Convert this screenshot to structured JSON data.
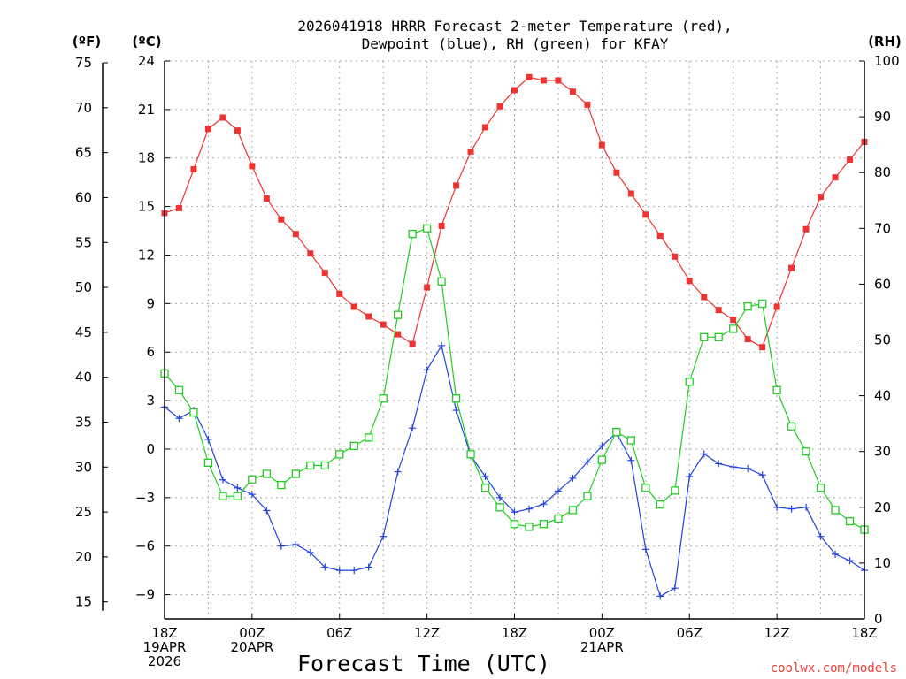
{
  "chart_data": {
    "type": "line",
    "title_line1": "2026041918 HRRR Forecast 2-meter Temperature (red),",
    "title_line2": "Dewpoint (blue), RH (green) for KFAY",
    "xlabel": "Forecast Time (UTC)",
    "credit": "coolwx.com/models",
    "units": {
      "fahrenheit": "(ºF)",
      "celsius": "(ºC)",
      "rh": "(RH)"
    },
    "xlim": [
      0,
      48
    ],
    "ylim_celsius": [
      -10.5,
      24
    ],
    "ylim_rh": [
      0,
      100
    ],
    "fahrenheit_ticks": [
      15,
      20,
      25,
      30,
      35,
      40,
      45,
      50,
      55,
      60,
      65,
      70,
      75
    ],
    "celsius_ticks": [
      -9,
      -6,
      -3,
      0,
      3,
      6,
      9,
      12,
      15,
      18,
      21,
      24
    ],
    "rh_ticks": [
      0,
      10,
      20,
      30,
      40,
      50,
      60,
      70,
      80,
      90,
      100
    ],
    "x_ticks": [
      {
        "x": 0,
        "lines": [
          "18Z",
          "19APR",
          "2026"
        ]
      },
      {
        "x": 6,
        "lines": [
          "00Z",
          "20APR"
        ]
      },
      {
        "x": 12,
        "lines": [
          "06Z"
        ]
      },
      {
        "x": 18,
        "lines": [
          "12Z"
        ]
      },
      {
        "x": 24,
        "lines": [
          "18Z"
        ]
      },
      {
        "x": 30,
        "lines": [
          "00Z",
          "21APR"
        ]
      },
      {
        "x": 36,
        "lines": [
          "06Z"
        ]
      },
      {
        "x": 42,
        "lines": [
          "12Z"
        ]
      },
      {
        "x": 48,
        "lines": [
          "18Z"
        ]
      }
    ],
    "series": [
      {
        "name": "Temperature",
        "axis": "celsius",
        "color": "#ee3333",
        "marker": "filled-square",
        "values": [
          14.6,
          14.9,
          17.3,
          19.8,
          20.5,
          19.7,
          17.5,
          15.5,
          14.2,
          13.3,
          12.1,
          10.9,
          9.6,
          8.8,
          8.2,
          7.7,
          7.1,
          6.5,
          10.0,
          13.8,
          16.3,
          18.4,
          19.9,
          21.2,
          22.2,
          23.0,
          22.8,
          22.8,
          22.1,
          21.3,
          18.8,
          17.1,
          15.8,
          14.5,
          13.2,
          11.9,
          10.4,
          9.4,
          8.6,
          8.0,
          6.8,
          6.3,
          8.8,
          11.2,
          13.6,
          15.6,
          16.8,
          17.9,
          19.0
        ]
      },
      {
        "name": "Dewpoint",
        "axis": "celsius",
        "color": "#2244dd",
        "marker": "plus",
        "values": [
          2.6,
          1.9,
          2.4,
          0.6,
          -1.9,
          -2.4,
          -2.8,
          -3.8,
          -6.0,
          -5.9,
          -6.4,
          -7.3,
          -7.5,
          -7.5,
          -7.3,
          -5.4,
          -1.4,
          1.3,
          4.9,
          6.4,
          2.4,
          -0.4,
          -1.7,
          -3.0,
          -3.9,
          -3.7,
          -3.4,
          -2.6,
          -1.8,
          -0.8,
          0.2,
          1.0,
          -0.7,
          -6.2,
          -9.1,
          -8.6,
          -1.7,
          -0.3,
          -0.9,
          -1.1,
          -1.2,
          -1.6,
          -3.6,
          -3.7,
          -3.6,
          -5.4,
          -6.5,
          -6.9,
          -7.5
        ]
      },
      {
        "name": "RH",
        "axis": "rh",
        "color": "#22cc22",
        "marker": "open-square",
        "values": [
          44,
          41,
          37,
          28,
          22,
          22,
          25,
          26,
          24,
          26,
          27.5,
          27.5,
          29.5,
          31,
          32.5,
          39.5,
          54.5,
          69,
          70,
          60.5,
          39.5,
          29.5,
          23.5,
          20,
          17,
          16.5,
          17,
          18,
          19.5,
          22,
          28.5,
          33.5,
          32,
          23.5,
          20.5,
          23,
          42.5,
          50.5,
          50.5,
          52,
          56,
          56.5,
          41,
          34.5,
          30,
          23.5,
          19.5,
          17.5,
          16
        ]
      }
    ]
  }
}
